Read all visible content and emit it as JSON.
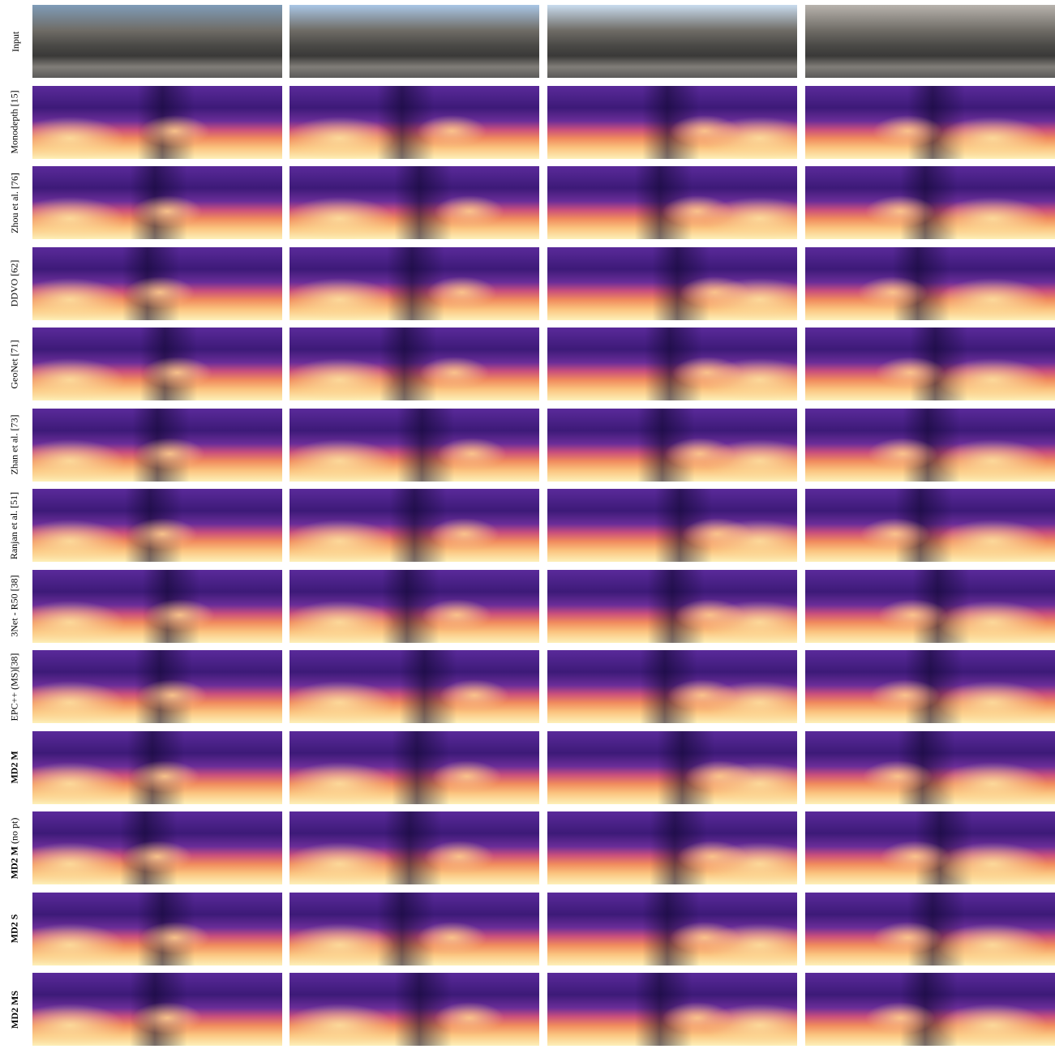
{
  "rows": [
    {
      "label": "Input",
      "bold": false
    },
    {
      "label": "Monodepth [15]",
      "bold": false
    },
    {
      "label": "Zhou et al. [76]",
      "bold": false
    },
    {
      "label": "DDVO [62]",
      "bold": false
    },
    {
      "label": "GeoNet [71]",
      "bold": false
    },
    {
      "label": "Zhan et al. [73]",
      "bold": false
    },
    {
      "label": "Ranjan et al. [51]",
      "bold": false
    },
    {
      "label": "3Net - R50 [38]",
      "bold": false
    },
    {
      "label": "EPC++ (MS)[38]",
      "bold": false
    },
    {
      "label": "MD2 M",
      "bold": true
    },
    {
      "label": "MD2 M",
      "suffix": "(no pt)",
      "bold": true
    },
    {
      "label": "MD2 S",
      "bold": true
    },
    {
      "label": "MD2 MS",
      "bold": true
    }
  ]
}
